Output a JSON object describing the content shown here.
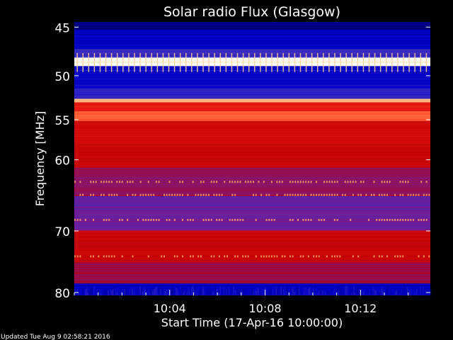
{
  "chart_data": {
    "type": "heatmap",
    "title": "Solar radio Flux (Glasgow)",
    "xlabel": "Start Time (17-Apr-16 10:00:00)",
    "ylabel": "Frequency [MHz]",
    "x_range_minutes": [
      0,
      14.93
    ],
    "x_ticks": [
      {
        "label": "10:04",
        "minutes": 4
      },
      {
        "label": "10:08",
        "minutes": 8
      },
      {
        "label": "10:12",
        "minutes": 12
      }
    ],
    "y_scale": "log",
    "y_range_mhz": [
      44.5,
      80.5
    ],
    "y_ticks": [
      {
        "label": "45",
        "mhz": 45
      },
      {
        "label": "50",
        "mhz": 50
      },
      {
        "label": "55",
        "mhz": 55
      },
      {
        "label": "60",
        "mhz": 60
      },
      {
        "label": "70",
        "mhz": 70
      },
      {
        "label": "80",
        "mhz": 80
      }
    ],
    "colormap": [
      "#00005a",
      "#0000c8",
      "#3a2ec0",
      "#7a1a90",
      "#b80000",
      "#e01010",
      "#ff4020",
      "#ffb070",
      "#ffffff"
    ],
    "intensity_profile": [
      {
        "f_min": 44.5,
        "f_max": 45.3,
        "level": 0.05
      },
      {
        "f_min": 45.3,
        "f_max": 47.2,
        "level": 0.12
      },
      {
        "f_min": 47.2,
        "f_max": 48.1,
        "level": 0.25
      },
      {
        "f_min": 48.1,
        "f_max": 49.0,
        "level": 1.0
      },
      {
        "f_min": 49.0,
        "f_max": 51.4,
        "level": 0.14
      },
      {
        "f_min": 51.4,
        "f_max": 52.6,
        "level": 0.22
      },
      {
        "f_min": 52.6,
        "f_max": 53.0,
        "level": 0.9
      },
      {
        "f_min": 53.0,
        "f_max": 54.0,
        "level": 0.65
      },
      {
        "f_min": 54.0,
        "f_max": 55.2,
        "level": 0.78
      },
      {
        "f_min": 55.2,
        "f_max": 58.0,
        "level": 0.58
      },
      {
        "f_min": 58.0,
        "f_max": 61.0,
        "level": 0.55
      },
      {
        "f_min": 61.0,
        "f_max": 65.0,
        "level": 0.42
      },
      {
        "f_min": 65.0,
        "f_max": 67.0,
        "level": 0.33
      },
      {
        "f_min": 67.0,
        "f_max": 70.0,
        "level": 0.35
      },
      {
        "f_min": 70.0,
        "f_max": 75.0,
        "level": 0.55
      },
      {
        "f_min": 75.0,
        "f_max": 78.5,
        "level": 0.45
      },
      {
        "f_min": 78.5,
        "f_max": 80.5,
        "level": 0.12
      }
    ]
  },
  "footer": {
    "updated": "Updated Tue Aug  9 02:58:21 2016"
  }
}
